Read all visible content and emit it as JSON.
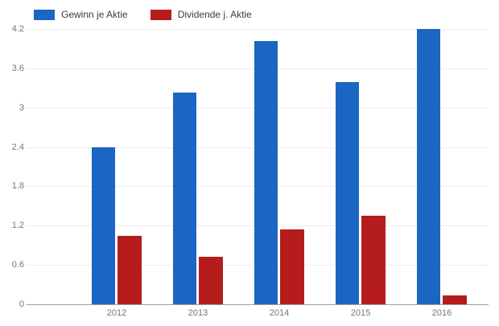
{
  "chart_data": {
    "type": "bar",
    "title": "",
    "xlabel": "",
    "ylabel": "",
    "categories": [
      "2012",
      "2013",
      "2014",
      "2015",
      "2016"
    ],
    "series": [
      {
        "name": "Gewinn je Aktie",
        "color": "#1a66c2",
        "values": [
          2.4,
          3.23,
          4.02,
          3.39,
          4.2
        ]
      },
      {
        "name": "Dividende j. Aktie",
        "color": "#b41d1c",
        "values": [
          1.04,
          0.72,
          1.14,
          1.35,
          0.14
        ]
      }
    ],
    "y_tick_labels": [
      "0",
      "0.6",
      "1.2",
      "1.8",
      "2.4",
      "3",
      "3.6",
      "4.2"
    ],
    "ylim": [
      0,
      4.2
    ],
    "grid": true,
    "legend_position": "top-left"
  },
  "colors": {
    "background": "#ffffff",
    "gridline": "#ececec",
    "axis_line": "#9e9e9e",
    "tick_label": "#757575",
    "legend_text": "#3c3c3c",
    "series_blue": "#1a66c2",
    "series_red": "#b41d1c"
  }
}
